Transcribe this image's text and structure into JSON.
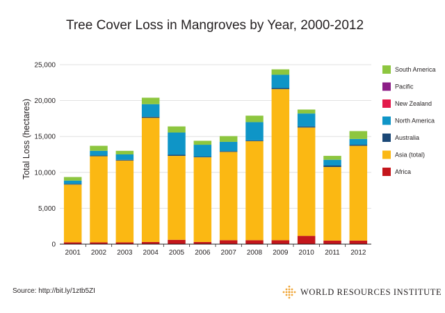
{
  "chart_data": {
    "type": "bar",
    "stacked": true,
    "title": "Tree Cover Loss in Mangroves by Year, 2000-2012",
    "xlabel": "",
    "ylabel": "Total Loss (hectares)",
    "ylim": [
      0,
      25000
    ],
    "yticks": [
      0,
      5000,
      10000,
      15000,
      20000,
      25000
    ],
    "ytick_labels": [
      "0",
      "5,000",
      "10,000",
      "15,000",
      "20,000",
      "25,000"
    ],
    "grid": true,
    "legend_position": "right",
    "categories": [
      "2001",
      "2002",
      "2003",
      "2004",
      "2005",
      "2006",
      "2007",
      "2008",
      "2009",
      "2010",
      "2011",
      "2012"
    ],
    "series": [
      {
        "name": "Africa",
        "color": "#c4161c",
        "values": [
          250,
          250,
          250,
          300,
          600,
          300,
          550,
          550,
          550,
          1150,
          500,
          500
        ]
      },
      {
        "name": "Asia (total)",
        "color": "#fbb813",
        "values": [
          8050,
          12000,
          11400,
          17300,
          11700,
          11800,
          12300,
          13800,
          21050,
          15100,
          10250,
          13200
        ]
      },
      {
        "name": "Australia",
        "color": "#1b4877",
        "values": [
          100,
          100,
          100,
          150,
          150,
          100,
          100,
          100,
          150,
          150,
          200,
          150
        ]
      },
      {
        "name": "North America",
        "color": "#0f95c7",
        "values": [
          450,
          650,
          750,
          1750,
          3100,
          1650,
          1300,
          2550,
          1850,
          1800,
          800,
          800
        ]
      },
      {
        "name": "New Zealand",
        "color": "#e31a4a",
        "values": [
          0,
          0,
          0,
          0,
          0,
          0,
          0,
          0,
          0,
          0,
          0,
          0
        ]
      },
      {
        "name": "Pacific",
        "color": "#8c1e87",
        "values": [
          0,
          0,
          0,
          0,
          0,
          0,
          0,
          0,
          0,
          0,
          0,
          0
        ]
      },
      {
        "name": "South America",
        "color": "#8dc63f",
        "values": [
          500,
          700,
          500,
          900,
          850,
          550,
          800,
          900,
          750,
          550,
          550,
          1100
        ]
      }
    ],
    "legend": [
      "South America",
      "Pacific",
      "New Zealand",
      "North America",
      "Australia",
      "Asia (total)",
      "Africa"
    ]
  },
  "footer": {
    "source": "Source: http://bit.ly/1ztb5ZI",
    "organization": "WORLD RESOURCES INSTITUTE"
  },
  "colors": {
    "text": "#231f20",
    "axis": "#231f20",
    "grid": "#d9d9d9",
    "logo": "#f0a637"
  }
}
